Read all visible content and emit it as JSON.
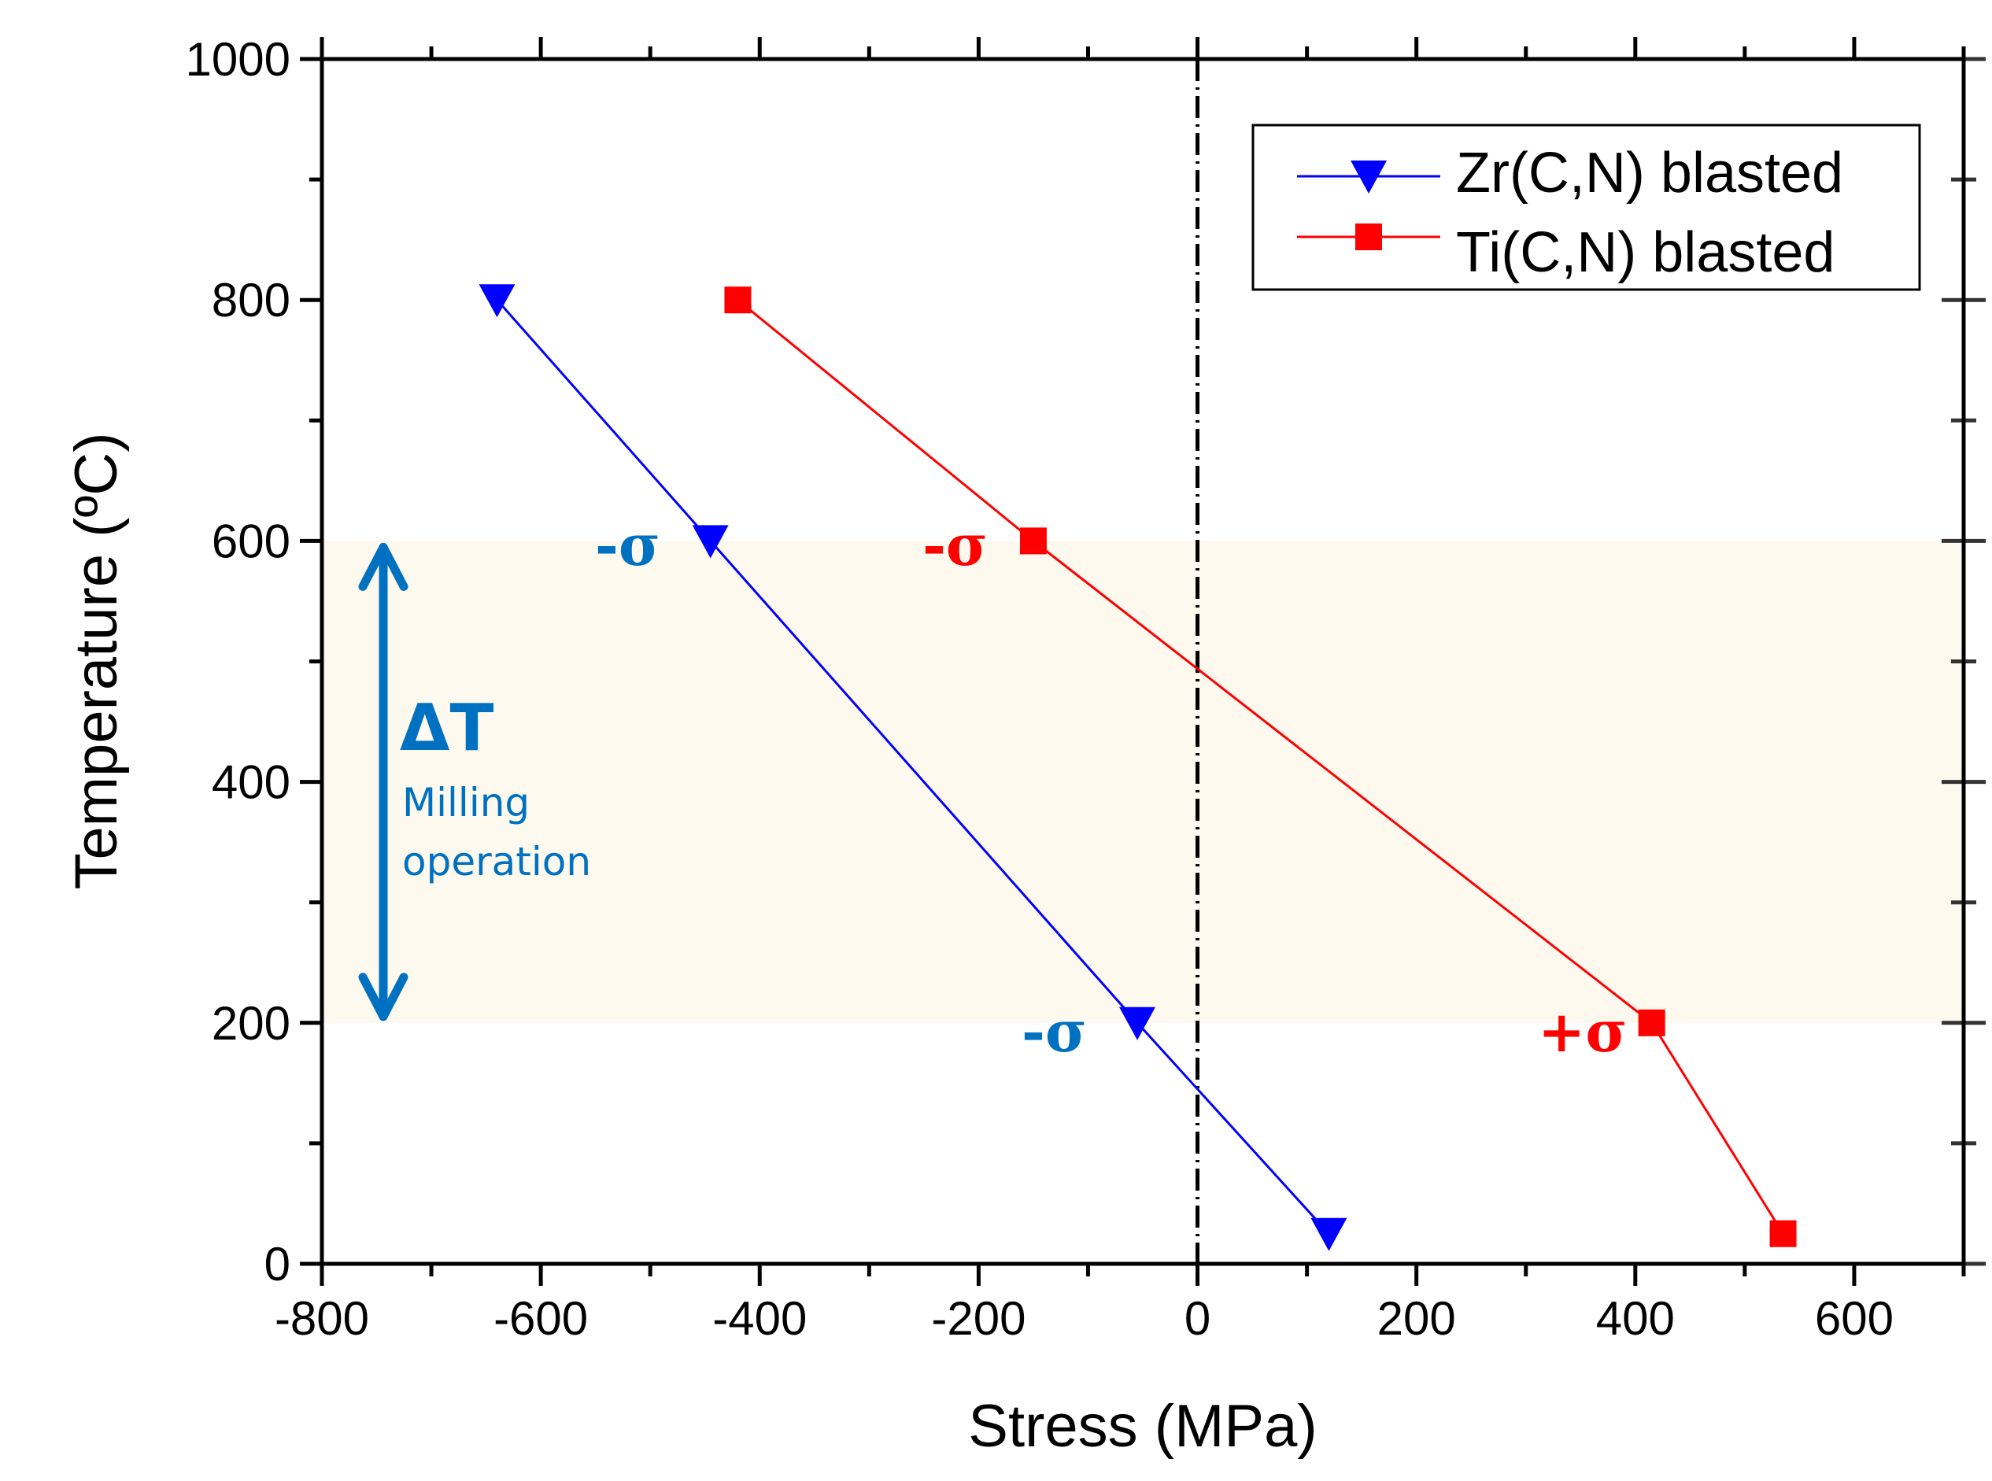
{
  "chart_data": {
    "type": "line",
    "xlabel": "Stress (MPa)",
    "ylabel": "Temperature (ºC)",
    "xlim": [
      -800,
      700
    ],
    "ylim": [
      0,
      1000
    ],
    "xticks": [
      -800,
      -600,
      -400,
      -200,
      0,
      200,
      400,
      600
    ],
    "yticks": [
      0,
      200,
      400,
      600,
      800,
      1000
    ],
    "grid": false,
    "legend_position": "top-right",
    "series": [
      {
        "name": "Zr(C,N) blasted",
        "color": "#0000ff",
        "marker": "triangle-down",
        "x": [
          -640,
          -445,
          -55,
          120
        ],
        "y": [
          800,
          600,
          200,
          25
        ]
      },
      {
        "name": "Ti(C,N) blasted",
        "color": "#ff0000",
        "marker": "square",
        "x": [
          -420,
          -150,
          415,
          535
        ],
        "y": [
          800,
          600,
          200,
          25
        ]
      }
    ],
    "reference_line": {
      "x": 0,
      "style": "dash-dot"
    },
    "shaded_band": {
      "y": [
        200,
        600
      ],
      "color": "#fdf9ee"
    },
    "annotations": {
      "delta_t": "ΔT",
      "milling": "Milling",
      "operation": "operation",
      "zr_600": "-σ",
      "ti_600": "-σ",
      "zr_200": "-σ",
      "ti_200": "+σ"
    },
    "annotation_color": "#0070c0"
  }
}
